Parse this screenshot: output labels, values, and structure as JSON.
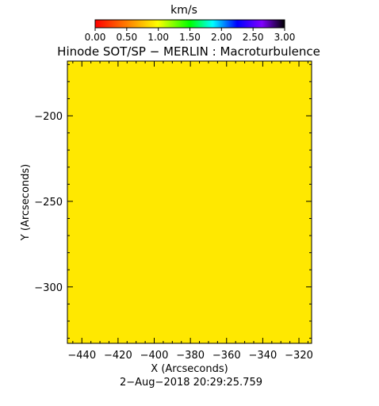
{
  "colorbar": {
    "unit": "km/s",
    "ticks": [
      "0.00",
      "0.50",
      "1.00",
      "1.50",
      "2.00",
      "2.50",
      "3.00"
    ],
    "range": [
      0,
      3
    ]
  },
  "title": "Hinode SOT/SP − MERLIN : Macroturbulence",
  "timestamp": "2−Aug−2018 20:29:25.759",
  "chart_data": {
    "type": "heatmap",
    "title": "Hinode SOT/SP − MERLIN : Macroturbulence",
    "xlabel": "X (Arcseconds)",
    "ylabel": "Y (Arcseconds)",
    "xlim": [
      -448,
      -313
    ],
    "ylim": [
      -333,
      -168
    ],
    "x_ticks": [
      -440,
      -420,
      -400,
      -380,
      -360,
      -340,
      -320
    ],
    "y_ticks": [
      -200,
      -250,
      -300
    ],
    "x_tick_labels": [
      "−440",
      "−420",
      "−400",
      "−380",
      "−360",
      "−340",
      "−320"
    ],
    "y_tick_labels": [
      "−200",
      "−250",
      "−300"
    ],
    "fill_value": 1.05,
    "fill_color": "#ffe800",
    "colormap_range": [
      0,
      3
    ],
    "colormap_unit": "km/s"
  }
}
